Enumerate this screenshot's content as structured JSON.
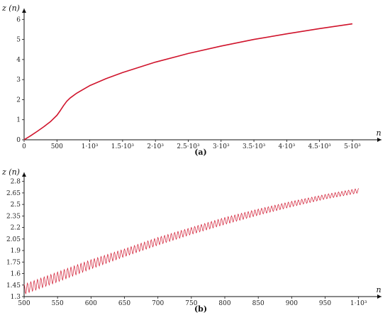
{
  "chart_data": [
    {
      "type": "line",
      "caption": "(a)",
      "ylabel": "z (n)",
      "xlabel": "n",
      "xlim": [
        0,
        5400
      ],
      "ylim": [
        0,
        6.4
      ],
      "x_ticks": [
        0,
        500,
        1000,
        1500,
        2000,
        2500,
        3000,
        3500,
        4000,
        4500,
        5000
      ],
      "x_tick_labels": [
        "0",
        "500",
        "1·10³",
        "1.5·10³",
        "2·10³",
        "2.5·10³",
        "3·10³",
        "3.5·10³",
        "4·10³",
        "4.5·10³",
        "5·10³"
      ],
      "y_ticks": [
        0,
        1,
        2,
        3,
        4,
        5,
        6
      ],
      "y_tick_labels": [
        "0",
        "1",
        "2",
        "3",
        "4",
        "5",
        "6"
      ],
      "grid": false,
      "color": "#d0142c",
      "series": [
        {
          "x": [
            0,
            100,
            200,
            300,
            400,
            500,
            550,
            600,
            650,
            700,
            800,
            1000,
            1250,
            1500,
            2000,
            2500,
            3000,
            3500,
            4000,
            4500,
            5000
          ],
          "y": [
            0.0,
            0.2,
            0.42,
            0.65,
            0.9,
            1.22,
            1.45,
            1.7,
            1.92,
            2.08,
            2.32,
            2.7,
            3.05,
            3.35,
            3.87,
            4.3,
            4.67,
            5.0,
            5.28,
            5.54,
            5.78
          ]
        }
      ]
    },
    {
      "type": "line",
      "caption": "(b)",
      "ylabel": "z (n)",
      "xlabel": "n",
      "xlim": [
        500,
        1030
      ],
      "ylim": [
        1.3,
        2.88
      ],
      "x_ticks": [
        500,
        550,
        600,
        650,
        700,
        750,
        800,
        850,
        900,
        950,
        1000
      ],
      "x_tick_labels": [
        "500",
        "550",
        "600",
        "650",
        "700",
        "750",
        "800",
        "850",
        "900",
        "950",
        "1·10³"
      ],
      "y_ticks": [
        1.3,
        1.45,
        1.6,
        1.75,
        1.9,
        2.05,
        2.2,
        2.35,
        2.5,
        2.65,
        2.8
      ],
      "y_tick_labels": [
        "1.3",
        "1.45",
        "1.6",
        "1.75",
        "1.9",
        "2.05",
        "2.2",
        "2.35",
        "2.5",
        "2.65",
        "2.8"
      ],
      "grid": false,
      "color": "#d0142c",
      "oscillation_period": 5,
      "series": [
        {
          "x": [
            500,
            550,
            600,
            650,
            700,
            750,
            800,
            850,
            900,
            950,
            1000
          ],
          "y_upper": [
            1.46,
            1.62,
            1.78,
            1.92,
            2.07,
            2.2,
            2.33,
            2.44,
            2.54,
            2.63,
            2.71
          ],
          "y_lower": [
            1.33,
            1.49,
            1.66,
            1.82,
            1.97,
            2.11,
            2.24,
            2.36,
            2.47,
            2.57,
            2.65
          ]
        }
      ]
    }
  ]
}
